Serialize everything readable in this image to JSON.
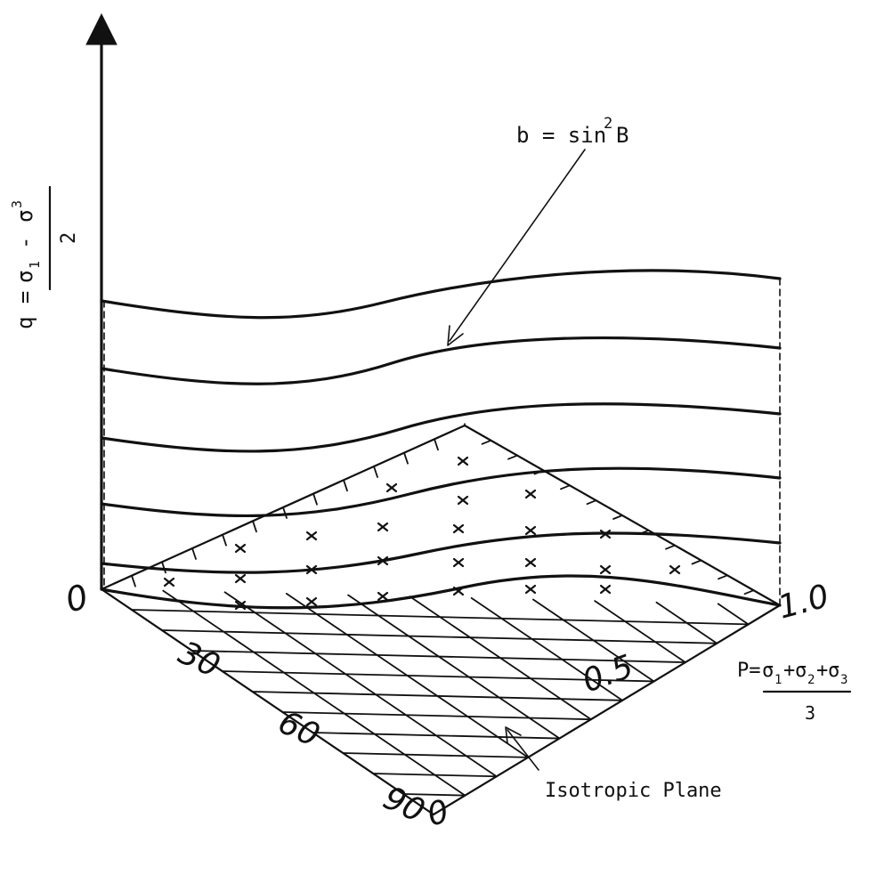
{
  "vertical_axis": {
    "label_lhs": "q =",
    "num_sigma1": "σ",
    "num_sub1": "1",
    "num_minus": "-",
    "num_sigma3": "σ",
    "num_sub3": "3",
    "denominator": "2"
  },
  "curve_label": {
    "lhs": "b = sin",
    "sup": "2",
    "rhs": "B"
  },
  "horizontal_axis": {
    "label_lhs": "P=",
    "s1": "σ",
    "sub1": "1",
    "plus1": "+",
    "s2": "σ",
    "sub2": "2",
    "plus2": "+",
    "s3": "σ",
    "sub3": "3",
    "denominator": "3"
  },
  "p_ticks": {
    "origin": "0",
    "mid": "0.5",
    "end": "1.0",
    "far_origin": "0"
  },
  "angle_ticks": {
    "t30": "30",
    "t60": "60",
    "t90": "90"
  },
  "callout": {
    "isotropic_plane": "Isotropic Plane"
  }
}
